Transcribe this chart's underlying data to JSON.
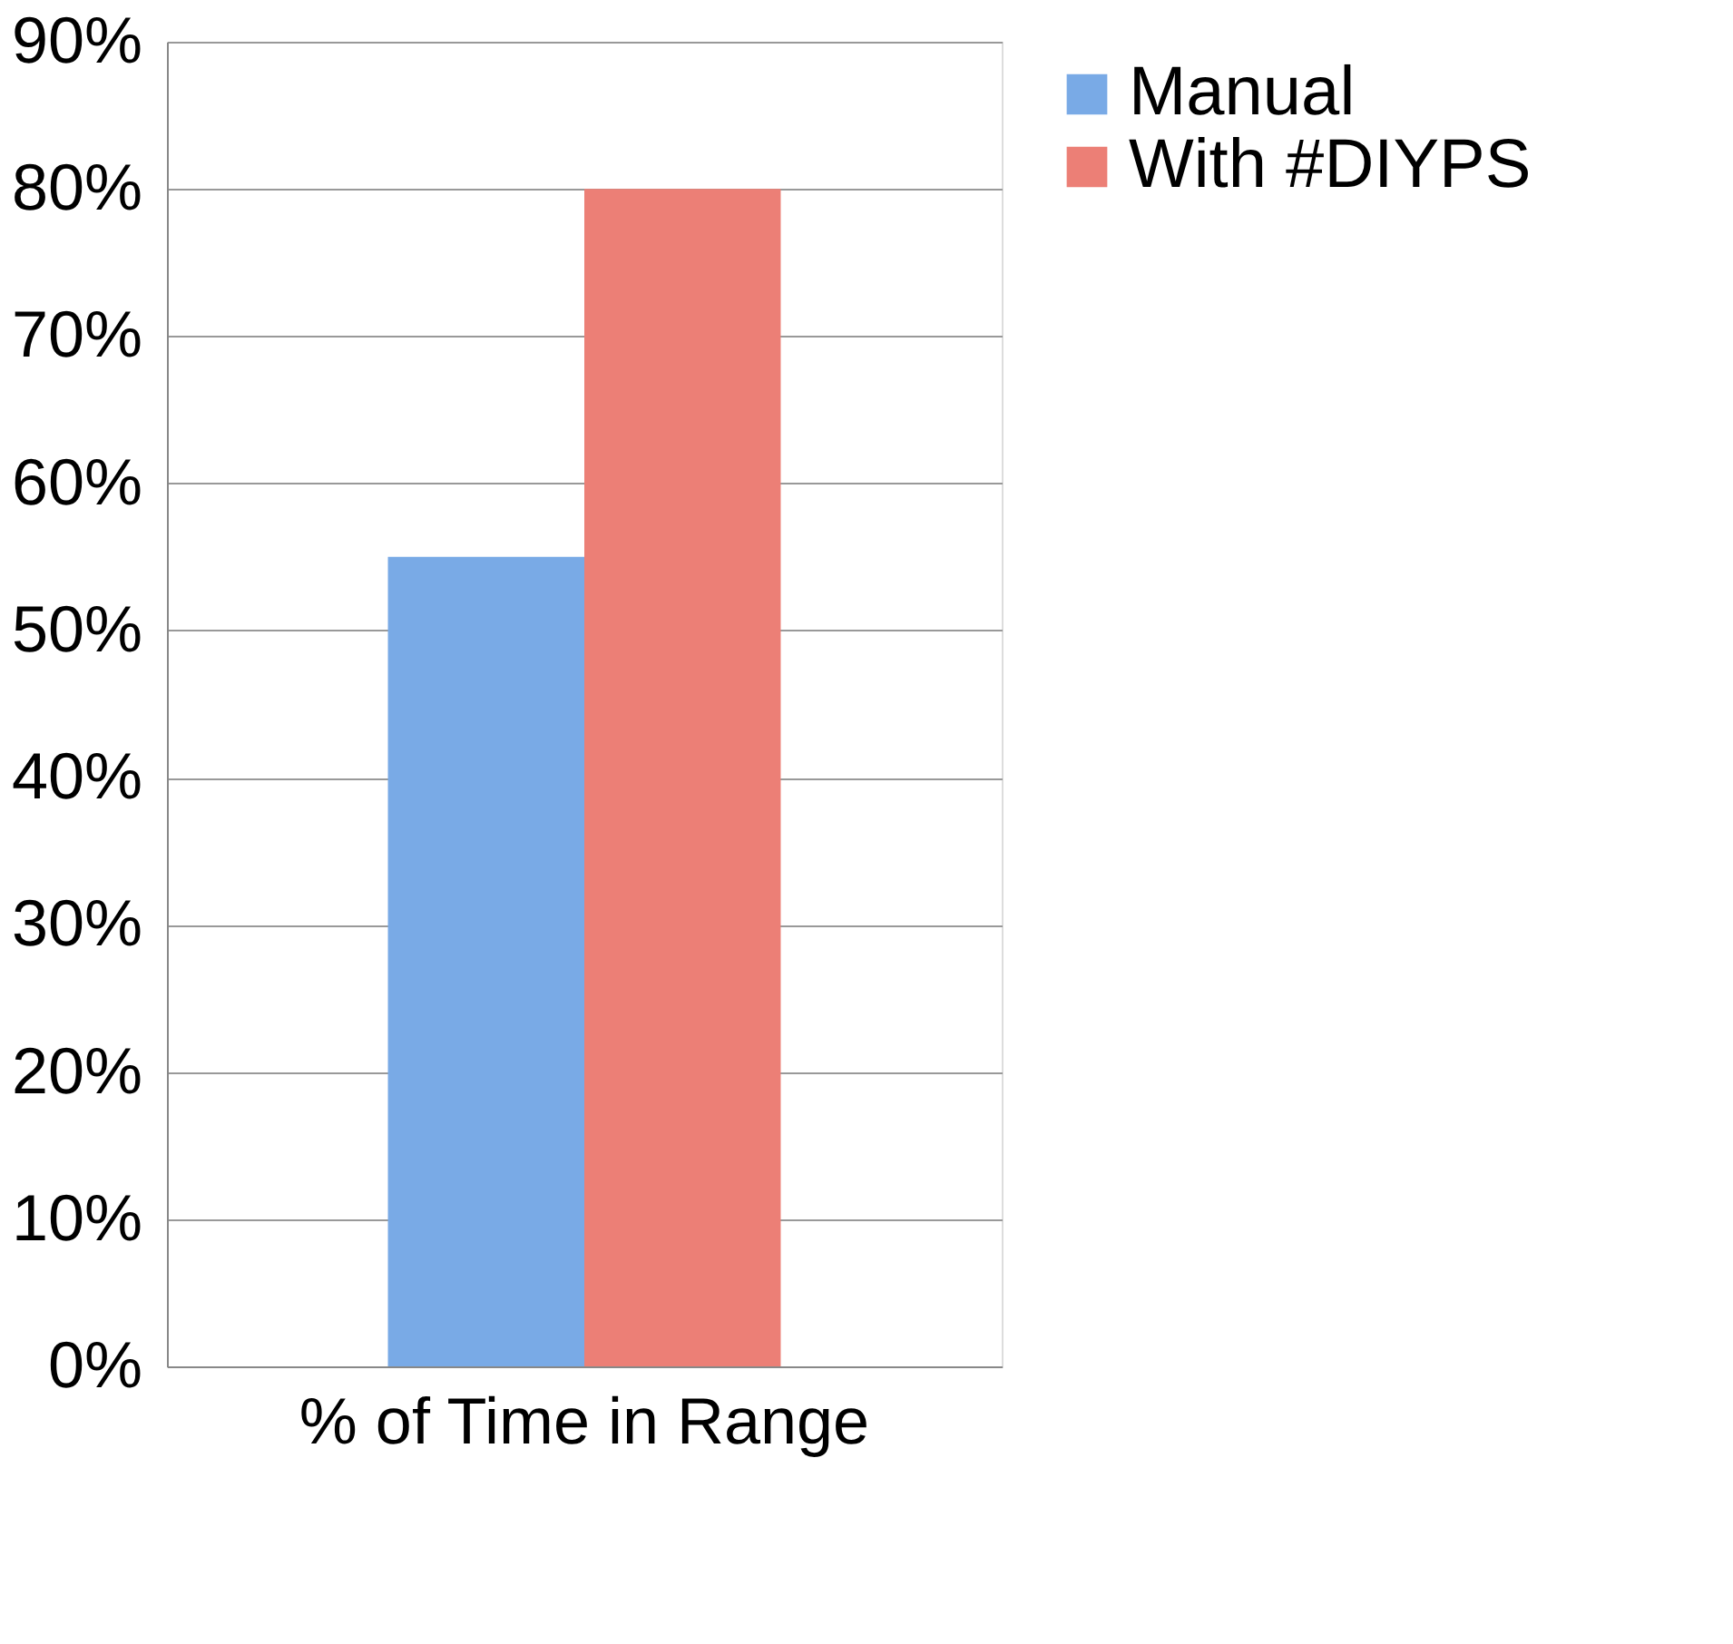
{
  "chart_data": {
    "type": "bar",
    "categories": [
      "% of Time in Range"
    ],
    "series": [
      {
        "name": "Manual",
        "color": "#79aae6",
        "values": [
          55
        ]
      },
      {
        "name": "With #DIYPS",
        "color": "#ec7f76",
        "values": [
          80
        ]
      }
    ],
    "ylim": [
      0,
      90
    ],
    "yticks": [
      {
        "value": 0,
        "label": "0%"
      },
      {
        "value": 10,
        "label": "10%"
      },
      {
        "value": 20,
        "label": "20%"
      },
      {
        "value": 30,
        "label": "30%"
      },
      {
        "value": 40,
        "label": "40%"
      },
      {
        "value": 50,
        "label": "50%"
      },
      {
        "value": 60,
        "label": "60%"
      },
      {
        "value": 70,
        "label": "70%"
      },
      {
        "value": 80,
        "label": "80%"
      },
      {
        "value": 90,
        "label": "90%"
      }
    ],
    "grid": "y",
    "legend": "right"
  }
}
